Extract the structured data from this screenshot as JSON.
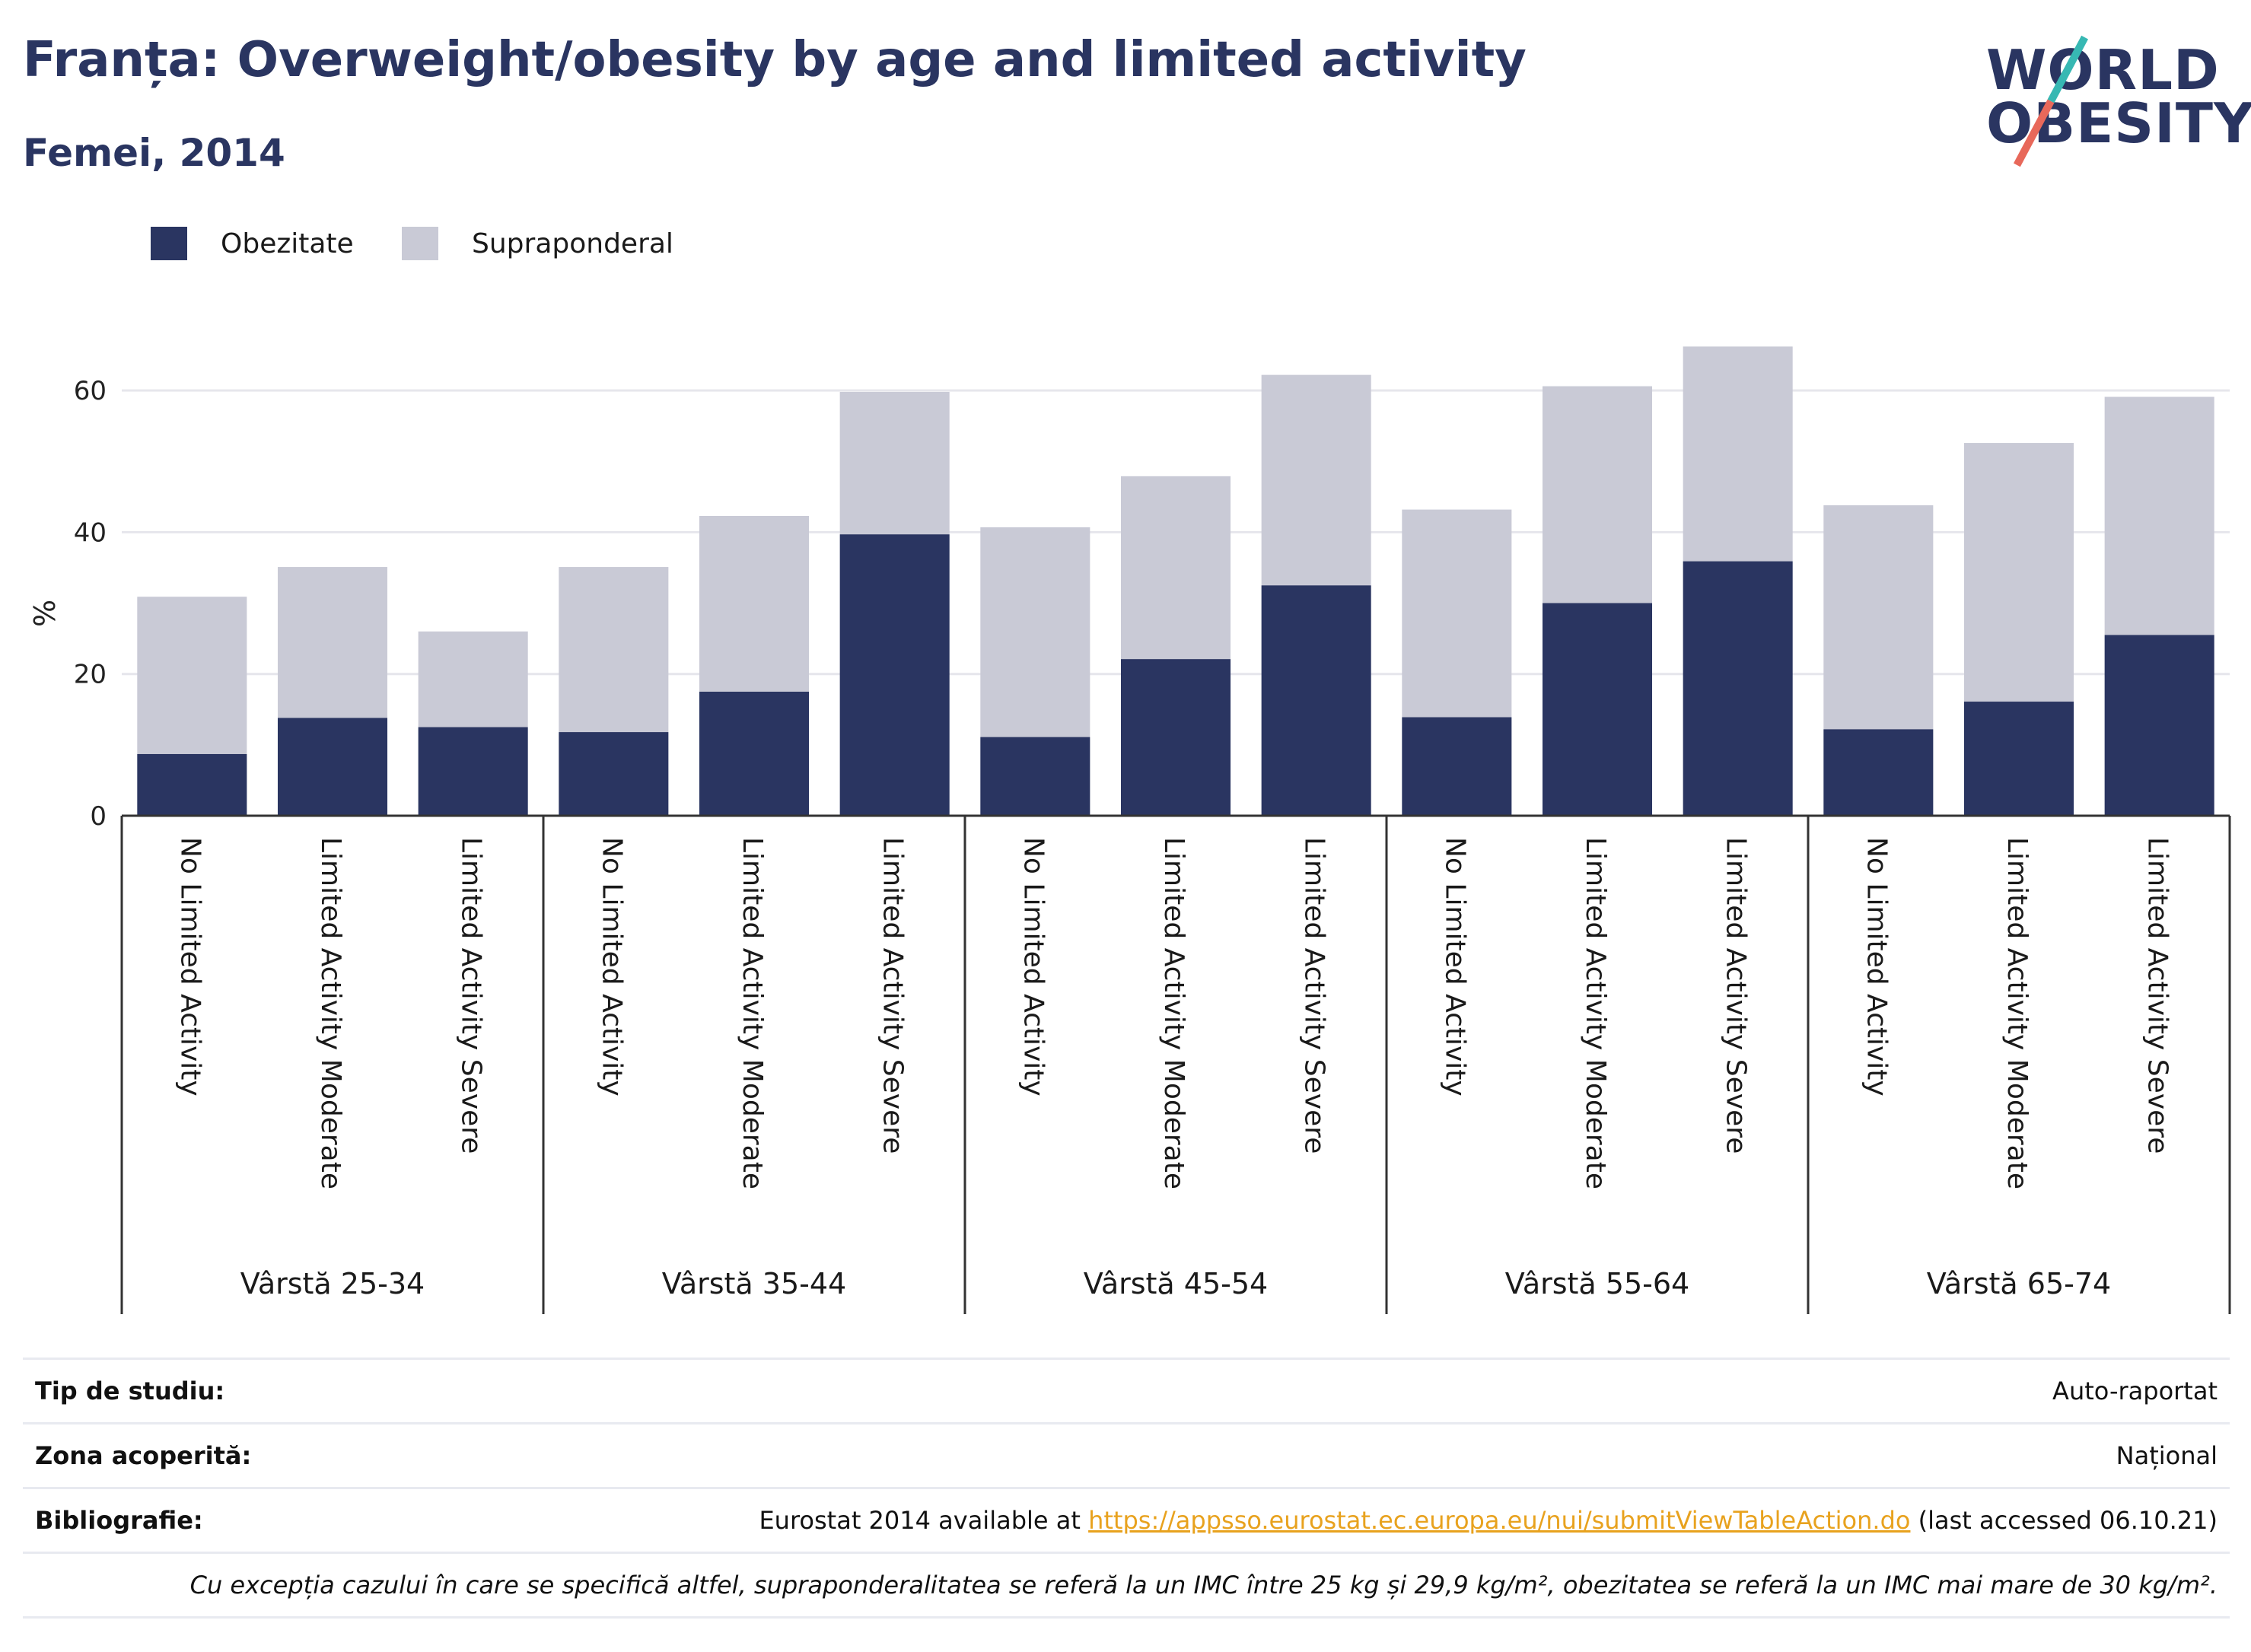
{
  "header": {
    "title": "Franța: Overweight/obesity by age and limited activity",
    "subtitle": "Femei, 2014"
  },
  "logo": {
    "line1": "WORLD",
    "line2": "OBESITY"
  },
  "colors": {
    "obesity": "#2a3561",
    "overweight": "#c9cad6",
    "title": "#2a3561",
    "link": "#e8a21e",
    "grid": "#e6e6ec"
  },
  "legend": [
    {
      "label": "Obezitate",
      "color": "#2a3561"
    },
    {
      "label": "Supraponderal",
      "color": "#c9cad6"
    }
  ],
  "chart_data": {
    "type": "bar",
    "stacked": true,
    "ylabel": "%",
    "ylim": [
      0,
      70
    ],
    "yticks": [
      0,
      20,
      40,
      60
    ],
    "grid": true,
    "legend_position": "top-left",
    "groups": [
      "Vârstă 25-34",
      "Vârstă 35-44",
      "Vârstă 45-54",
      "Vârstă 55-64",
      "Vârstă 65-74"
    ],
    "categories": [
      "No Limited Activity",
      "Limited Activity Moderate",
      "Limited Activity Severe"
    ],
    "series": [
      {
        "name": "Obezitate",
        "values": [
          [
            8.7,
            13.8,
            12.5
          ],
          [
            11.8,
            17.5,
            39.7
          ],
          [
            11.1,
            22.1,
            32.5
          ],
          [
            13.9,
            30.0,
            35.9
          ],
          [
            12.2,
            16.1,
            25.5
          ]
        ]
      },
      {
        "name": "Supraponderal",
        "values": [
          [
            22.2,
            21.3,
            13.5
          ],
          [
            23.3,
            24.8,
            20.1
          ],
          [
            29.6,
            25.8,
            29.7
          ],
          [
            29.3,
            30.6,
            30.3
          ],
          [
            31.6,
            36.5,
            33.6
          ]
        ]
      }
    ]
  },
  "footer": {
    "rows": [
      {
        "key": "Tip de studiu:",
        "value": "Auto-raportat"
      },
      {
        "key": "Zona acoperită:",
        "value": "Național"
      }
    ],
    "bibliography": {
      "key": "Bibliografie:",
      "prefix": "Eurostat 2014 available at ",
      "link": "https://appsso.eurostat.ec.europa.eu/nui/submitViewTableAction.do",
      "suffix": " (last accessed 06.10.21)"
    },
    "note": "Cu excepția cazului în care se specifică altfel, supraponderalitatea se referă la un IMC între 25 kg și 29,9 kg/m², obezitatea se referă la un IMC mai mare de 30 kg/m²."
  }
}
